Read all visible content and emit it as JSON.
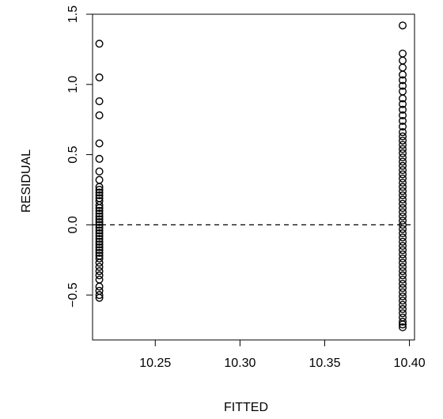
{
  "chart_data": {
    "type": "scatter",
    "title": "",
    "xlabel": "FITTED",
    "ylabel": "RESIDUAL",
    "xlim": [
      10.213,
      10.403
    ],
    "ylim": [
      -0.82,
      1.5
    ],
    "x_ticks": [
      10.25,
      10.3,
      10.35,
      10.4
    ],
    "x_tick_labels": [
      "10.25",
      "10.30",
      "10.35",
      "10.40"
    ],
    "y_ticks": [
      -0.5,
      0.0,
      0.5,
      1.0,
      1.5
    ],
    "y_tick_labels": [
      "−0.5",
      "0.0",
      "0.5",
      "1.0",
      "1.5"
    ],
    "reference_line": {
      "y": 0,
      "style": "dashed"
    },
    "grid": false,
    "series": [
      {
        "x": 10.217,
        "residuals": [
          1.29,
          1.05,
          0.88,
          0.78,
          0.58,
          0.47,
          0.38,
          0.32,
          0.27,
          0.25,
          0.23,
          0.21,
          0.19,
          0.17,
          0.14,
          0.12,
          0.1,
          0.08,
          0.06,
          0.04,
          0.02,
          0.0,
          -0.02,
          -0.04,
          -0.06,
          -0.08,
          -0.1,
          -0.12,
          -0.14,
          -0.16,
          -0.18,
          -0.2,
          -0.22,
          -0.24,
          -0.27,
          -0.3,
          -0.33,
          -0.36,
          -0.39,
          -0.44,
          -0.47,
          -0.5,
          -0.52
        ]
      },
      {
        "x": 10.396,
        "residuals": [
          1.42,
          1.22,
          1.17,
          1.12,
          1.07,
          1.03,
          0.99,
          0.95,
          0.9,
          0.86,
          0.82,
          0.78,
          0.74,
          0.7,
          0.66,
          0.63,
          0.6,
          0.57,
          0.54,
          0.51,
          0.48,
          0.45,
          0.42,
          0.39,
          0.36,
          0.33,
          0.3,
          0.27,
          0.24,
          0.21,
          0.18,
          0.15,
          0.12,
          0.09,
          0.06,
          0.03,
          0.0,
          -0.03,
          -0.06,
          -0.09,
          -0.12,
          -0.15,
          -0.18,
          -0.21,
          -0.24,
          -0.27,
          -0.3,
          -0.33,
          -0.36,
          -0.39,
          -0.42,
          -0.45,
          -0.48,
          -0.51,
          -0.54,
          -0.57,
          -0.6,
          -0.63,
          -0.66,
          -0.69,
          -0.71,
          -0.73
        ]
      }
    ]
  }
}
